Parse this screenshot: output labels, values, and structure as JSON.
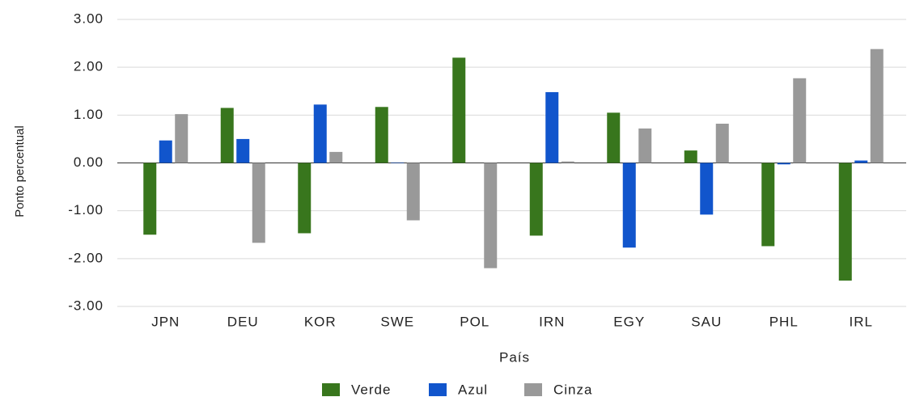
{
  "chart_data": {
    "type": "bar",
    "categories": [
      "JPN",
      "DEU",
      "KOR",
      "SWE",
      "POL",
      "IRN",
      "EGY",
      "SAU",
      "PHL",
      "IRL"
    ],
    "series": [
      {
        "name": "Verde",
        "color": "#38761d",
        "values": [
          -1.5,
          1.15,
          -1.47,
          1.17,
          2.2,
          -1.52,
          1.05,
          0.26,
          -1.74,
          -2.46
        ]
      },
      {
        "name": "Azul",
        "color": "#1155cc",
        "values": [
          0.47,
          0.5,
          1.22,
          0.01,
          0,
          1.48,
          -1.77,
          -1.08,
          -0.03,
          0.05
        ]
      },
      {
        "name": "Cinza",
        "color": "#999999",
        "values": [
          1.02,
          -1.67,
          0.23,
          -1.2,
          -2.2,
          0.03,
          0.72,
          0.82,
          1.77,
          2.38
        ]
      }
    ],
    "xlabel": "País",
    "ylabel": "Ponto percentual",
    "ylim": [
      -3,
      3
    ],
    "yticks": [
      {
        "value": -3,
        "label": "-3.00"
      },
      {
        "value": -2,
        "label": "-2.00"
      },
      {
        "value": -1,
        "label": "-1.00"
      },
      {
        "value": 0,
        "label": "0.00"
      },
      {
        "value": 1,
        "label": "1.00"
      },
      {
        "value": 2,
        "label": "2.00"
      },
      {
        "value": 3,
        "label": "3.00"
      }
    ],
    "grid": true,
    "legend": "bottom"
  }
}
